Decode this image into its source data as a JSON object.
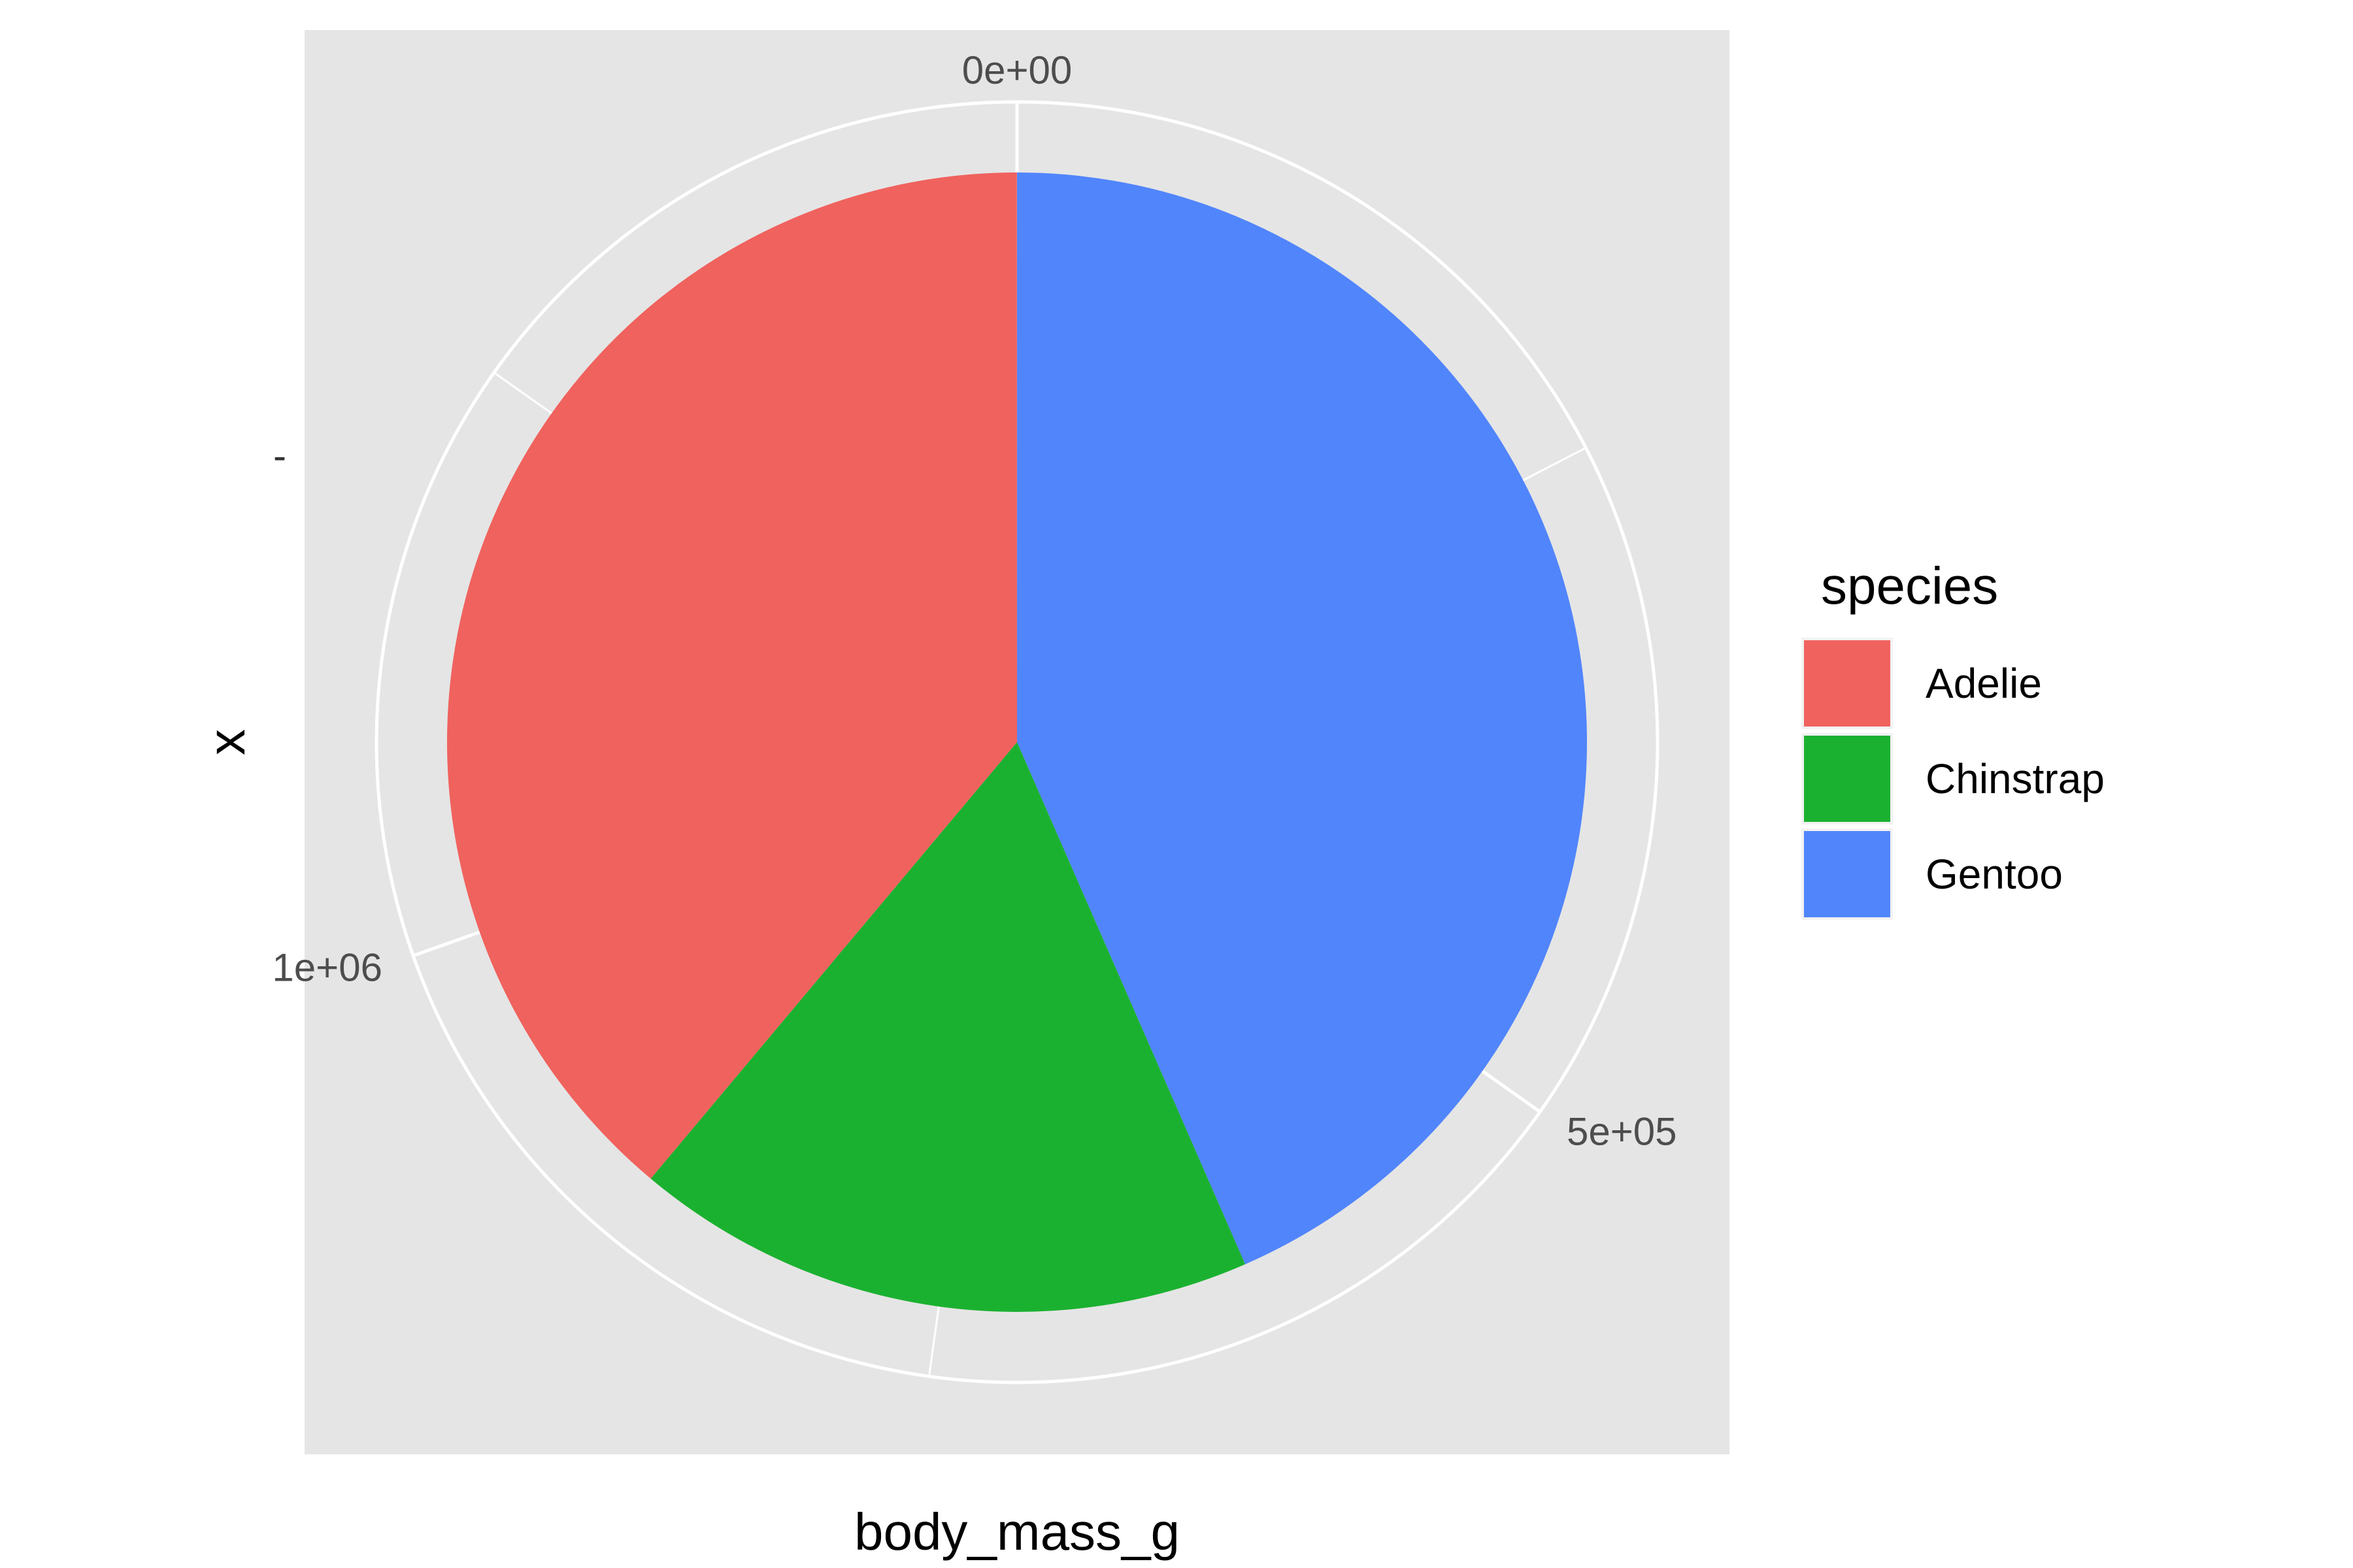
{
  "chart_data": {
    "type": "pie",
    "xlabel": "body_mass_g",
    "ylabel": "x",
    "y_tick_label": "-",
    "angle_axis": {
      "ticks": [
        0,
        500000,
        1000000
      ],
      "tick_labels": [
        "0e+00",
        "5e+05",
        "1e+06"
      ],
      "max": 1437000
    },
    "legend": {
      "title": "species",
      "placement": "right"
    },
    "series": [
      {
        "name": "Gentoo",
        "value": 624300,
        "color": "#5185FC"
      },
      {
        "name": "Chinstrap",
        "value": 253850,
        "color": "#1BB130"
      },
      {
        "name": "Adelie",
        "value": 558800,
        "color": "#F0625E"
      }
    ],
    "background_color": "#E5E5E5",
    "grid": true
  }
}
